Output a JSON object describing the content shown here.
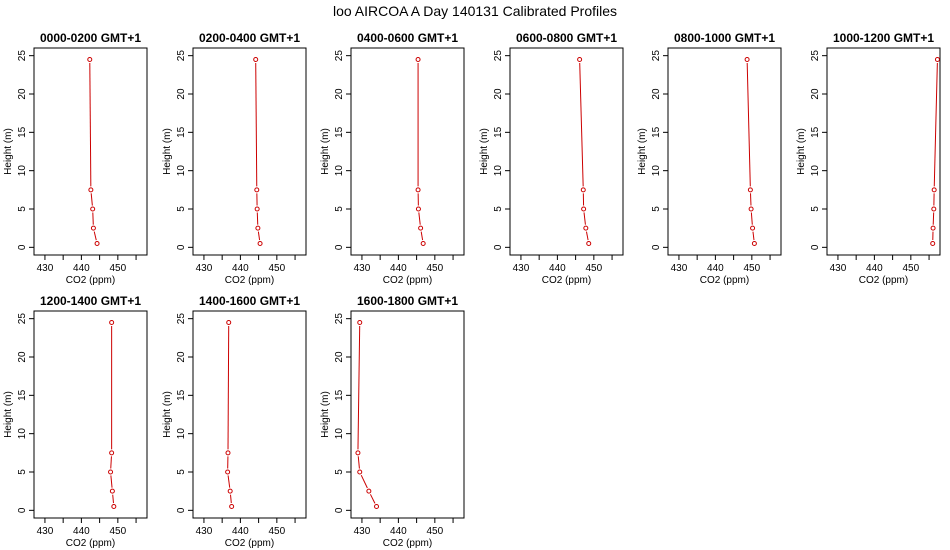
{
  "page": {
    "title": "loo AIRCOA A  Day 140131  Calibrated Profiles"
  },
  "style": {
    "line_color": "#cc0000",
    "marker_color": "#cc0000",
    "axis_color": "#000000"
  },
  "chart_data": [
    {
      "type": "line",
      "title": "0000-0200 GMT+1",
      "xlabel": "CO2 (ppm)",
      "ylabel": "Height (m)",
      "xlim": [
        427,
        458
      ],
      "ylim": [
        -1,
        26
      ],
      "xticks": [
        430,
        440,
        450
      ],
      "yticks": [
        0,
        5,
        10,
        15,
        20,
        25
      ],
      "grid": false,
      "series": [
        {
          "x": [
            444.3,
            443.3,
            443.1,
            442.6,
            442.3
          ],
          "y": [
            0.5,
            2.5,
            5,
            7.5,
            24.5
          ]
        }
      ]
    },
    {
      "type": "line",
      "title": "0200-0400 GMT+1",
      "xlabel": "CO2 (ppm)",
      "ylabel": "Height (m)",
      "xlim": [
        427,
        458
      ],
      "ylim": [
        -1,
        26
      ],
      "xticks": [
        430,
        440,
        450
      ],
      "yticks": [
        0,
        5,
        10,
        15,
        20,
        25
      ],
      "grid": false,
      "series": [
        {
          "x": [
            445.4,
            444.8,
            444.6,
            444.5,
            444.2
          ],
          "y": [
            0.5,
            2.5,
            5,
            7.5,
            24.5
          ]
        }
      ]
    },
    {
      "type": "line",
      "title": "0400-0600 GMT+1",
      "xlabel": "CO2 (ppm)",
      "ylabel": "Height (m)",
      "xlim": [
        427,
        458
      ],
      "ylim": [
        -1,
        26
      ],
      "xticks": [
        430,
        440,
        450
      ],
      "yticks": [
        0,
        5,
        10,
        15,
        20,
        25
      ],
      "grid": false,
      "series": [
        {
          "x": [
            446.8,
            446.1,
            445.5,
            445.4,
            445.4
          ],
          "y": [
            0.5,
            2.5,
            5,
            7.5,
            24.5
          ]
        }
      ]
    },
    {
      "type": "line",
      "title": "0600-0800 GMT+1",
      "xlabel": "CO2 (ppm)",
      "ylabel": "Height (m)",
      "xlim": [
        427,
        458
      ],
      "ylim": [
        -1,
        26
      ],
      "xticks": [
        430,
        440,
        450
      ],
      "yticks": [
        0,
        5,
        10,
        15,
        20,
        25
      ],
      "grid": false,
      "series": [
        {
          "x": [
            448.6,
            447.8,
            447.2,
            447.1,
            446.1
          ],
          "y": [
            0.5,
            2.5,
            5,
            7.5,
            24.5
          ]
        }
      ]
    },
    {
      "type": "line",
      "title": "0800-1000 GMT+1",
      "xlabel": "CO2 (ppm)",
      "ylabel": "Height (m)",
      "xlim": [
        427,
        458
      ],
      "ylim": [
        -1,
        26
      ],
      "xticks": [
        430,
        440,
        450
      ],
      "yticks": [
        0,
        5,
        10,
        15,
        20,
        25
      ],
      "grid": false,
      "series": [
        {
          "x": [
            450.7,
            450.2,
            449.8,
            449.6,
            448.7
          ],
          "y": [
            0.5,
            2.5,
            5,
            7.5,
            24.5
          ]
        }
      ]
    },
    {
      "type": "line",
      "title": "1000-1200 GMT+1",
      "xlabel": "CO2 (ppm)",
      "ylabel": "Height (m)",
      "xlim": [
        427,
        458
      ],
      "ylim": [
        -1,
        26
      ],
      "xticks": [
        430,
        440,
        450
      ],
      "yticks": [
        0,
        5,
        10,
        15,
        20,
        25
      ],
      "grid": false,
      "series": [
        {
          "x": [
            456.0,
            456.1,
            456.3,
            456.4,
            457.3
          ],
          "y": [
            0.5,
            2.5,
            5,
            7.5,
            24.5
          ]
        }
      ]
    },
    {
      "type": "line",
      "title": "1200-1400 GMT+1",
      "xlabel": "CO2 (ppm)",
      "ylabel": "Height (m)",
      "xlim": [
        427,
        458
      ],
      "ylim": [
        -1,
        26
      ],
      "xticks": [
        430,
        440,
        450
      ],
      "yticks": [
        0,
        5,
        10,
        15,
        20,
        25
      ],
      "grid": false,
      "series": [
        {
          "x": [
            448.9,
            448.5,
            448.0,
            448.3,
            448.3
          ],
          "y": [
            0.5,
            2.5,
            5,
            7.5,
            24.5
          ]
        }
      ]
    },
    {
      "type": "line",
      "title": "1400-1600 GMT+1",
      "xlabel": "CO2 (ppm)",
      "ylabel": "Height (m)",
      "xlim": [
        427,
        458
      ],
      "ylim": [
        -1,
        26
      ],
      "xticks": [
        430,
        440,
        450
      ],
      "yticks": [
        0,
        5,
        10,
        15,
        20,
        25
      ],
      "grid": false,
      "series": [
        {
          "x": [
            437.6,
            437.2,
            436.5,
            436.6,
            436.8
          ],
          "y": [
            0.5,
            2.5,
            5,
            7.5,
            24.5
          ]
        }
      ]
    },
    {
      "type": "line",
      "title": "1600-1800 GMT+1",
      "xlabel": "CO2 (ppm)",
      "ylabel": "Height (m)",
      "xlim": [
        427,
        458
      ],
      "ylim": [
        -1,
        26
      ],
      "xticks": [
        430,
        440,
        450
      ],
      "yticks": [
        0,
        5,
        10,
        15,
        20,
        25
      ],
      "grid": false,
      "series": [
        {
          "x": [
            434.0,
            431.9,
            429.4,
            428.9,
            429.4
          ],
          "y": [
            0.5,
            2.5,
            5,
            7.5,
            24.5
          ]
        }
      ]
    }
  ]
}
